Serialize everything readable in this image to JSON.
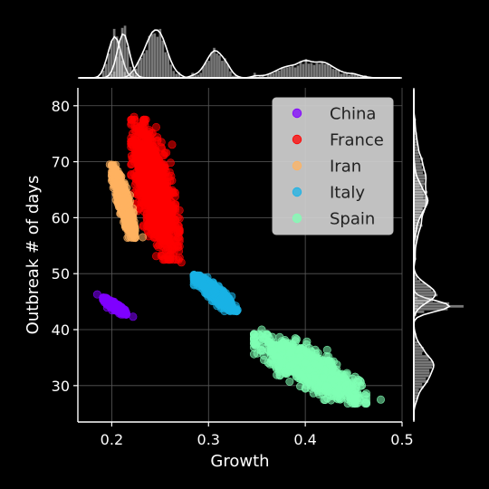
{
  "chart_data": {
    "type": "scatter",
    "title": "",
    "xlabel": "Growth",
    "ylabel": "Outbreak # of days",
    "xlim": [
      0.165,
      0.5
    ],
    "ylim": [
      23.5,
      83.2
    ],
    "xticks": [
      0.2,
      0.3,
      0.4,
      0.5
    ],
    "xtick_labels": [
      "0.2",
      "0.3",
      "0.4",
      "0.5"
    ],
    "yticks": [
      30,
      40,
      50,
      60,
      70,
      80
    ],
    "ytick_labels": [
      "30",
      "40",
      "50",
      "60",
      "70",
      "80"
    ],
    "grid": true,
    "legend_position": "top-right",
    "background": "#000000",
    "marginal_histograms": {
      "top": "Growth distribution",
      "right": "Outbreak days distribution"
    },
    "series": [
      {
        "name": "China",
        "color": "#8000ff",
        "center": [
          0.203,
          44.2
        ],
        "spread": [
          0.012,
          1.5
        ],
        "corr": -0.9,
        "sample_points": [
          [
            0.185,
            46.3
          ],
          [
            0.195,
            45.5
          ],
          [
            0.205,
            44.2
          ],
          [
            0.213,
            43.2
          ],
          [
            0.222,
            42.3
          ]
        ]
      },
      {
        "name": "France",
        "color": "#ff0000",
        "center": [
          0.245,
          65.0
        ],
        "spread": [
          0.025,
          12.5
        ],
        "corr": -0.65,
        "sample_points": [
          [
            0.223,
            78.0
          ],
          [
            0.235,
            72.0
          ],
          [
            0.245,
            65.0
          ],
          [
            0.258,
            58.0
          ],
          [
            0.272,
            52.0
          ]
        ]
      },
      {
        "name": "Iran",
        "color": "#ffb360",
        "center": [
          0.212,
          62.9
        ],
        "spread": [
          0.012,
          6.5
        ],
        "corr": -0.85,
        "sample_points": [
          [
            0.198,
            69.5
          ],
          [
            0.205,
            66.0
          ],
          [
            0.212,
            62.9
          ],
          [
            0.22,
            59.0
          ],
          [
            0.232,
            56.5
          ]
        ]
      },
      {
        "name": "Italy",
        "color": "#1ab2e6",
        "center": [
          0.307,
          46.5
        ],
        "spread": [
          0.022,
          3.2
        ],
        "corr": -0.9,
        "sample_points": [
          [
            0.285,
            49.8
          ],
          [
            0.295,
            48.2
          ],
          [
            0.307,
            46.5
          ],
          [
            0.318,
            45.0
          ],
          [
            0.33,
            43.5
          ]
        ]
      },
      {
        "name": "Spain",
        "color": "#80ffb4",
        "center": [
          0.405,
          33.0
        ],
        "spread": [
          0.058,
          6.2
        ],
        "corr": -0.82,
        "sample_points": [
          [
            0.355,
            40.0
          ],
          [
            0.385,
            36.0
          ],
          [
            0.405,
            33.0
          ],
          [
            0.435,
            29.5
          ],
          [
            0.478,
            27.5
          ]
        ]
      }
    ]
  }
}
